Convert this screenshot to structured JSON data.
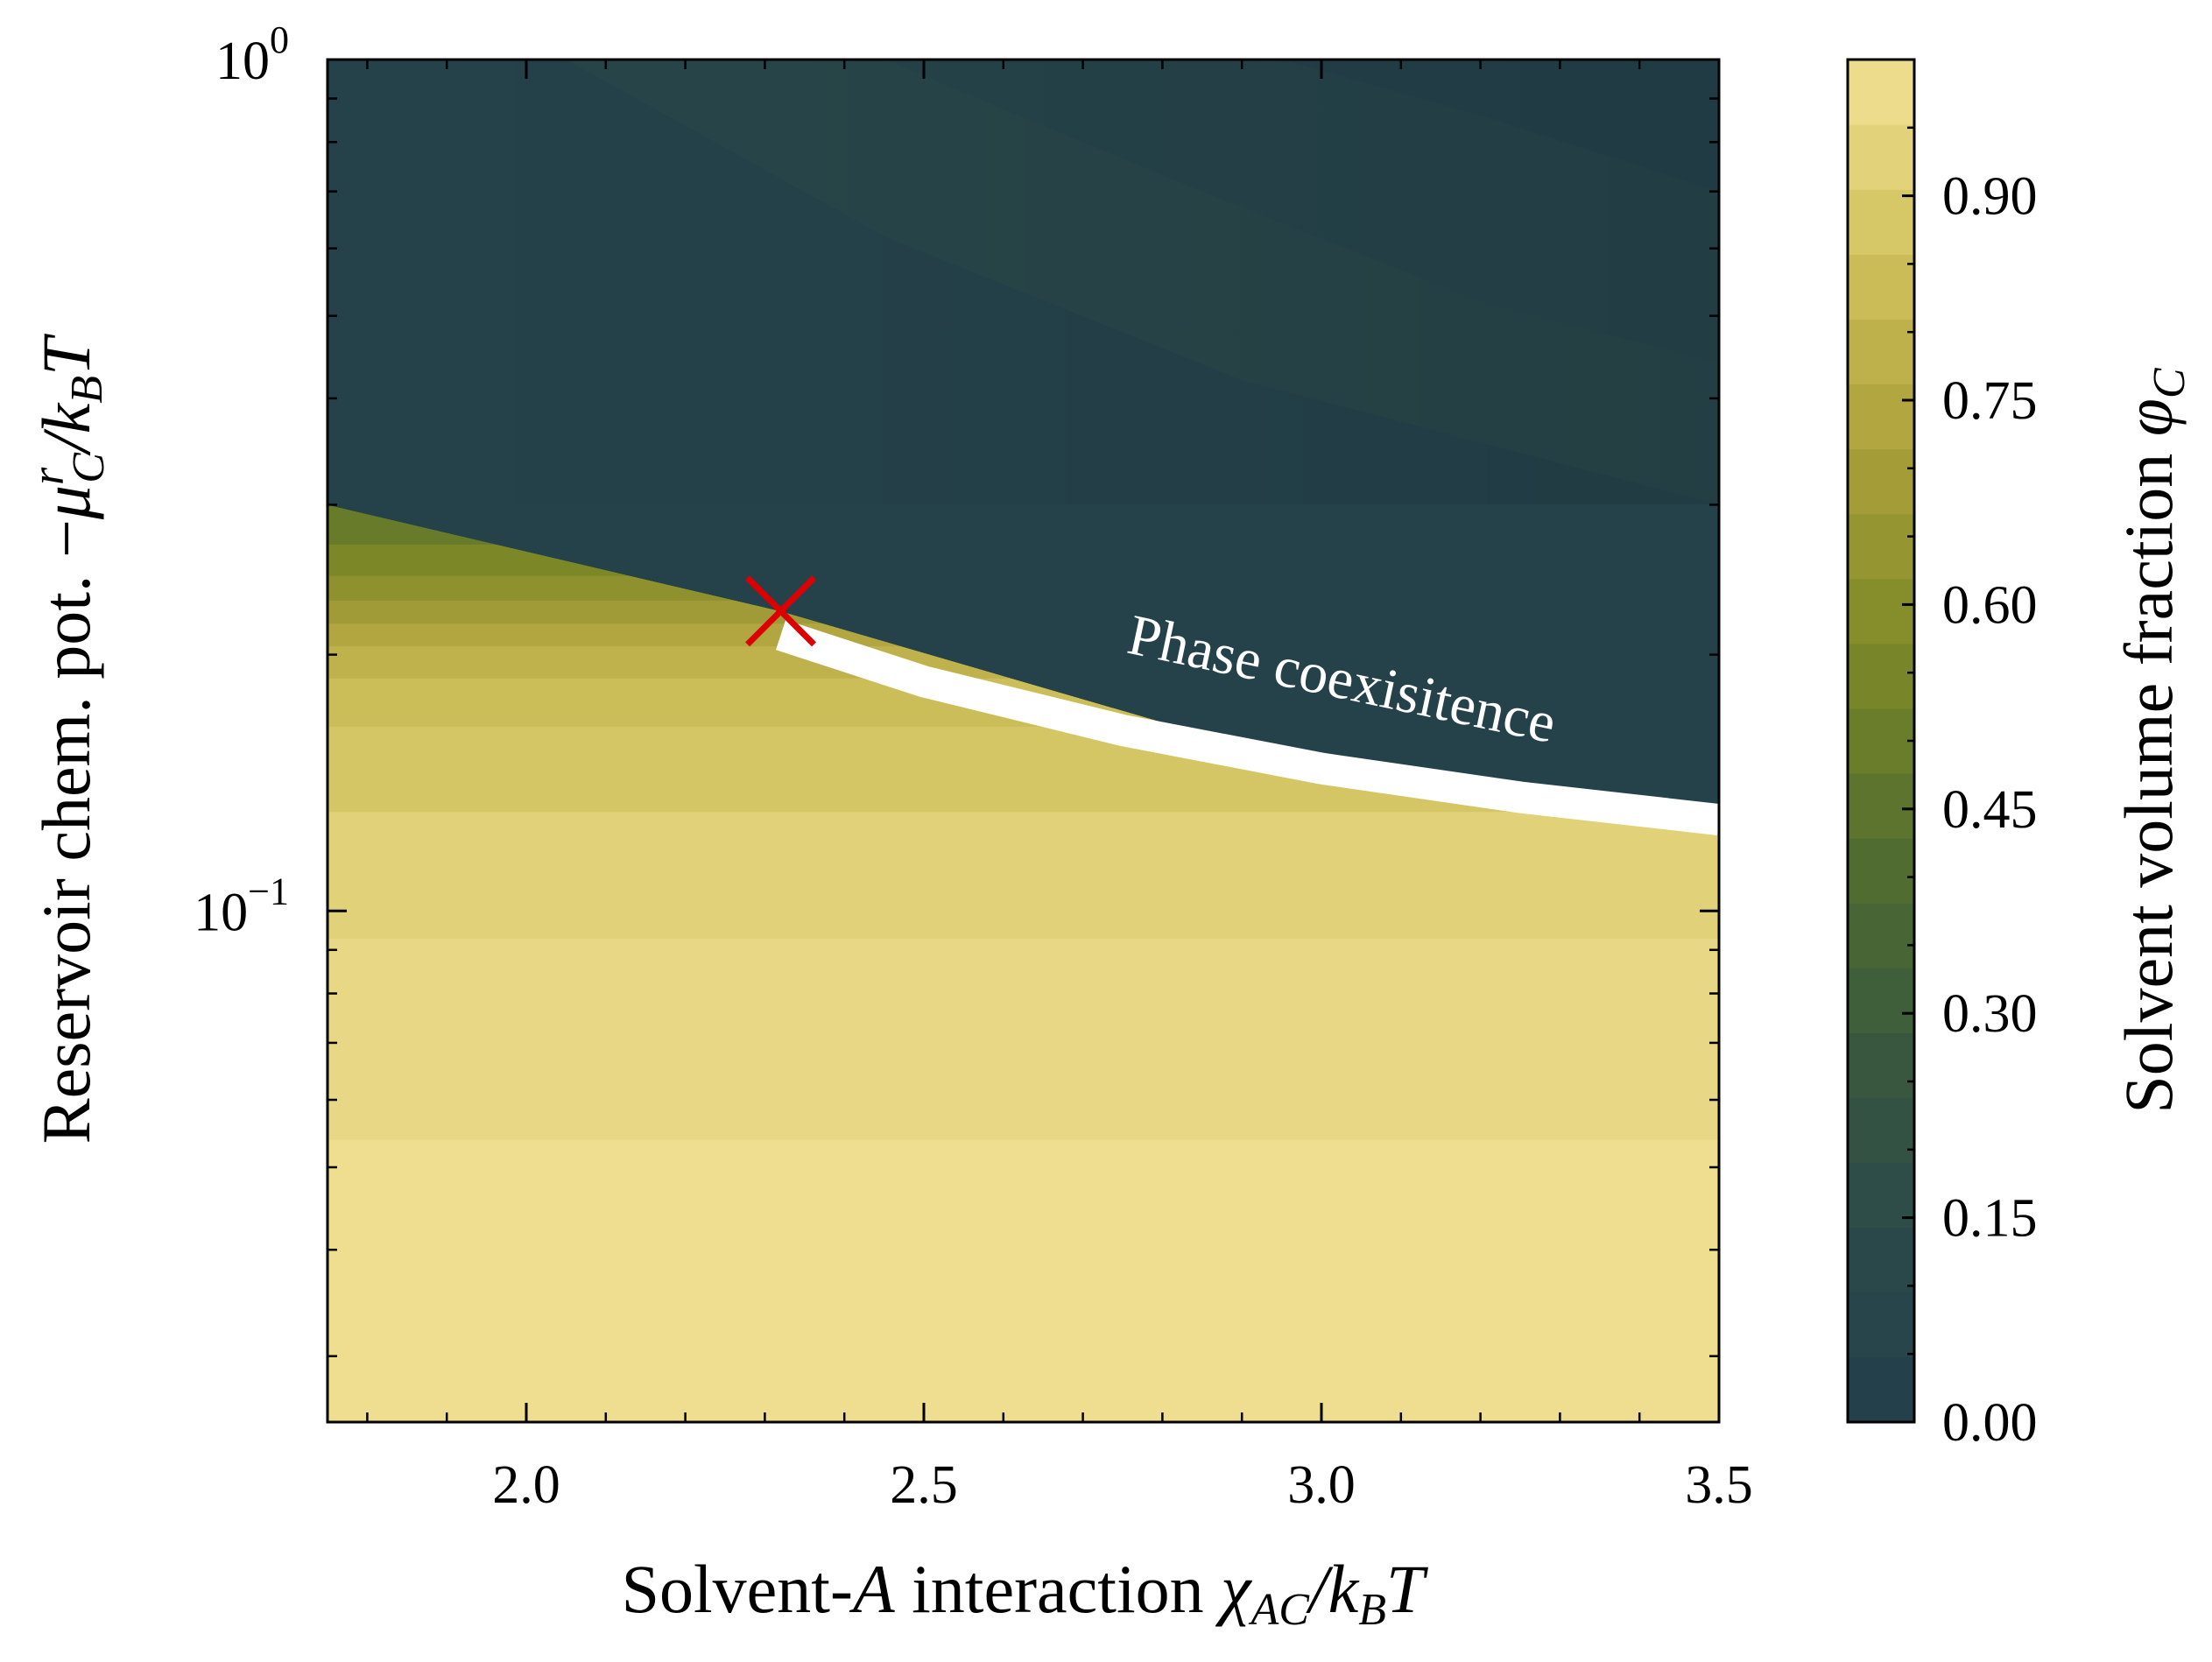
{
  "chart_data": {
    "type": "heatmap",
    "xlabel": {
      "prefix": "Solvent-",
      "var": "A",
      "middle": " interaction ",
      "symbol": "χ",
      "sub": "AC",
      "tail": "/k",
      "tail_sub": "B",
      "tail_end": "T"
    },
    "ylabel": {
      "prefix": "Reservoir chem. pot. −",
      "symbol": "μ",
      "sup": "r",
      "sub": "C",
      "tail": "/k",
      "tail_sub": "B",
      "tail_end": "T"
    },
    "colorbar_label": {
      "text": "Solvent volume fraction ",
      "symbol": "φ",
      "sub": "C"
    },
    "xlim": [
      1.75,
      3.5
    ],
    "ylim": [
      0.0251,
      1.0
    ],
    "yscale": "log",
    "x_ticks": [
      "2.0",
      "2.5",
      "3.0",
      "3.5"
    ],
    "x_tick_values": [
      2.0,
      2.5,
      3.0,
      3.5
    ],
    "y_ticks": [
      {
        "value": 1.0,
        "base": "10",
        "exp": "0"
      },
      {
        "value": 0.1,
        "base": "10",
        "exp": "−1"
      }
    ],
    "colorbar_ticks": [
      "0.00",
      "0.15",
      "0.30",
      "0.45",
      "0.60",
      "0.75",
      "0.90"
    ],
    "colorbar_tick_values": [
      0.0,
      0.15,
      0.3,
      0.45,
      0.6,
      0.75,
      0.9
    ],
    "colorbar_range": [
      0.0,
      1.0
    ],
    "colormap": [
      "#223f4b",
      "#2c4a4a",
      "#3b5a3c",
      "#556f2e",
      "#7f8a28",
      "#aaa03a",
      "#d1c25e",
      "#f2e195"
    ],
    "coexistence_line": {
      "x": [
        2.32,
        2.5,
        2.75,
        3.0,
        3.25,
        3.5
      ],
      "y": [
        0.211,
        0.186,
        0.163,
        0.147,
        0.136,
        0.128
      ]
    },
    "critical_point": {
      "x": 2.32,
      "y": 0.225,
      "marker": "x",
      "color": "#dd0000"
    },
    "annotations": [
      {
        "text": "Phase coexisitence"
      }
    ],
    "grid": false
  }
}
